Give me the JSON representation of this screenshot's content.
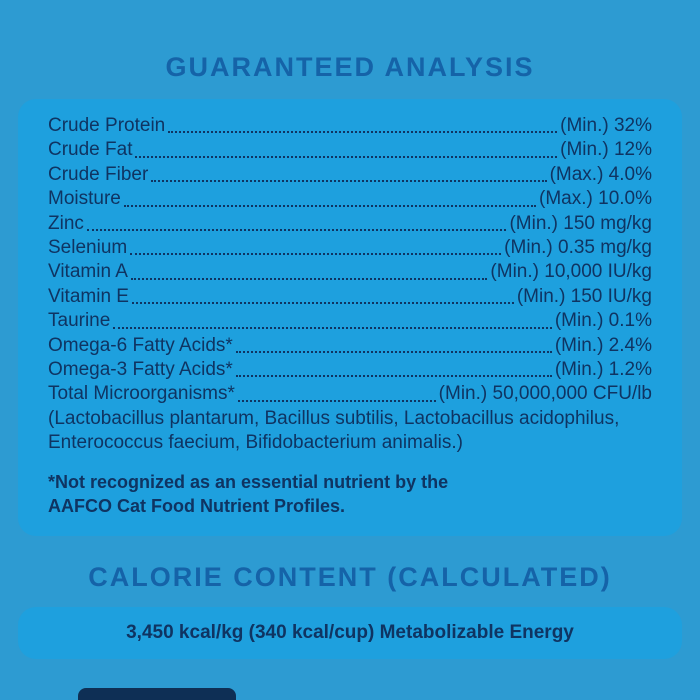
{
  "colors": {
    "background": "#2d9bd2",
    "panel": "#1ea0de",
    "text": "#0f3462",
    "title": "#1563a8",
    "shape": "#0e2f55"
  },
  "guaranteed_analysis": {
    "title": "GUARANTEED ANALYSIS",
    "rows": [
      {
        "label": "Crude Protein",
        "value": "(Min.) 32%"
      },
      {
        "label": "Crude Fat",
        "value": "(Min.) 12%"
      },
      {
        "label": "Crude Fiber",
        "value": "(Max.) 4.0%"
      },
      {
        "label": "Moisture",
        "value": "(Max.) 10.0%"
      },
      {
        "label": "Zinc",
        "value": "(Min.) 150 mg/kg"
      },
      {
        "label": "Selenium",
        "value": "(Min.) 0.35 mg/kg"
      },
      {
        "label": "Vitamin A",
        "value": "(Min.) 10,000 IU/kg"
      },
      {
        "label": "Vitamin E",
        "value": "(Min.) 150 IU/kg"
      },
      {
        "label": "Taurine",
        "value": "(Min.) 0.1%"
      },
      {
        "label": "Omega-6 Fatty Acids*",
        "value": "(Min.) 2.4%"
      },
      {
        "label": "Omega-3 Fatty Acids*",
        "value": "(Min.) 1.2%"
      },
      {
        "label": "Total Microorganisms*",
        "value": "(Min.) 50,000,000 CFU/lb"
      }
    ],
    "microorganisms_detail": "(Lactobacillus plantarum, Bacillus subtilis, Lactobacillus acidophilus, Enterococcus faecium, Bifidobacterium animalis.)",
    "footnote_line1": "*Not recognized as an essential nutrient by the",
    "footnote_line2": "AAFCO Cat Food Nutrient Profiles."
  },
  "calorie_content": {
    "title": "CALORIE CONTENT (CALCULATED)",
    "energy_text": "3,450 kcal/kg (340 kcal/cup) Metabolizable Energy"
  }
}
